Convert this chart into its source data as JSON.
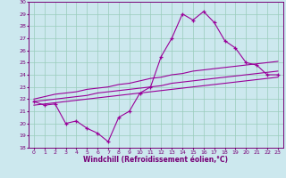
{
  "xlabel": "Windchill (Refroidissement éolien,°C)",
  "background_color": "#cce8ee",
  "grid_color": "#99ccbb",
  "line_color": "#990099",
  "xlim": [
    -0.5,
    23.5
  ],
  "ylim": [
    18,
    30
  ],
  "xticks": [
    0,
    1,
    2,
    3,
    4,
    5,
    6,
    7,
    8,
    9,
    10,
    11,
    12,
    13,
    14,
    15,
    16,
    17,
    18,
    19,
    20,
    21,
    22,
    23
  ],
  "yticks": [
    18,
    19,
    20,
    21,
    22,
    23,
    24,
    25,
    26,
    27,
    28,
    29,
    30
  ],
  "line1_x": [
    0,
    1,
    2,
    3,
    4,
    5,
    6,
    7,
    8,
    9,
    10,
    11,
    12,
    13,
    14,
    15,
    16,
    17,
    18,
    19,
    20,
    21,
    22,
    23
  ],
  "line1_y": [
    21.8,
    21.5,
    21.6,
    20.0,
    20.2,
    19.6,
    19.2,
    18.5,
    20.5,
    21.0,
    22.5,
    23.0,
    25.5,
    27.0,
    29.0,
    28.5,
    29.2,
    28.3,
    26.8,
    26.2,
    25.0,
    24.8,
    24.0,
    24.0
  ],
  "line2_x": [
    0,
    1,
    2,
    3,
    4,
    5,
    6,
    7,
    8,
    9,
    10,
    11,
    12,
    13,
    14,
    15,
    16,
    17,
    18,
    19,
    20,
    21,
    22,
    23
  ],
  "line2_y": [
    22.0,
    22.2,
    22.4,
    22.5,
    22.6,
    22.8,
    22.9,
    23.0,
    23.2,
    23.3,
    23.5,
    23.7,
    23.8,
    24.0,
    24.1,
    24.3,
    24.4,
    24.5,
    24.6,
    24.7,
    24.8,
    24.9,
    25.0,
    25.1
  ],
  "line3_x": [
    0,
    1,
    2,
    3,
    4,
    5,
    6,
    7,
    8,
    9,
    10,
    11,
    12,
    13,
    14,
    15,
    16,
    17,
    18,
    19,
    20,
    21,
    22,
    23
  ],
  "line3_y": [
    21.8,
    21.9,
    22.0,
    22.1,
    22.2,
    22.3,
    22.5,
    22.6,
    22.7,
    22.8,
    22.9,
    23.0,
    23.1,
    23.3,
    23.4,
    23.5,
    23.6,
    23.7,
    23.8,
    23.9,
    24.0,
    24.1,
    24.2,
    24.3
  ],
  "line4_x": [
    0,
    1,
    2,
    3,
    4,
    5,
    6,
    7,
    8,
    9,
    10,
    11,
    12,
    13,
    14,
    15,
    16,
    17,
    18,
    19,
    20,
    21,
    22,
    23
  ],
  "line4_y": [
    21.5,
    21.6,
    21.7,
    21.8,
    21.9,
    22.0,
    22.1,
    22.2,
    22.3,
    22.4,
    22.5,
    22.6,
    22.7,
    22.8,
    22.9,
    23.0,
    23.1,
    23.2,
    23.3,
    23.4,
    23.5,
    23.6,
    23.7,
    23.8
  ]
}
